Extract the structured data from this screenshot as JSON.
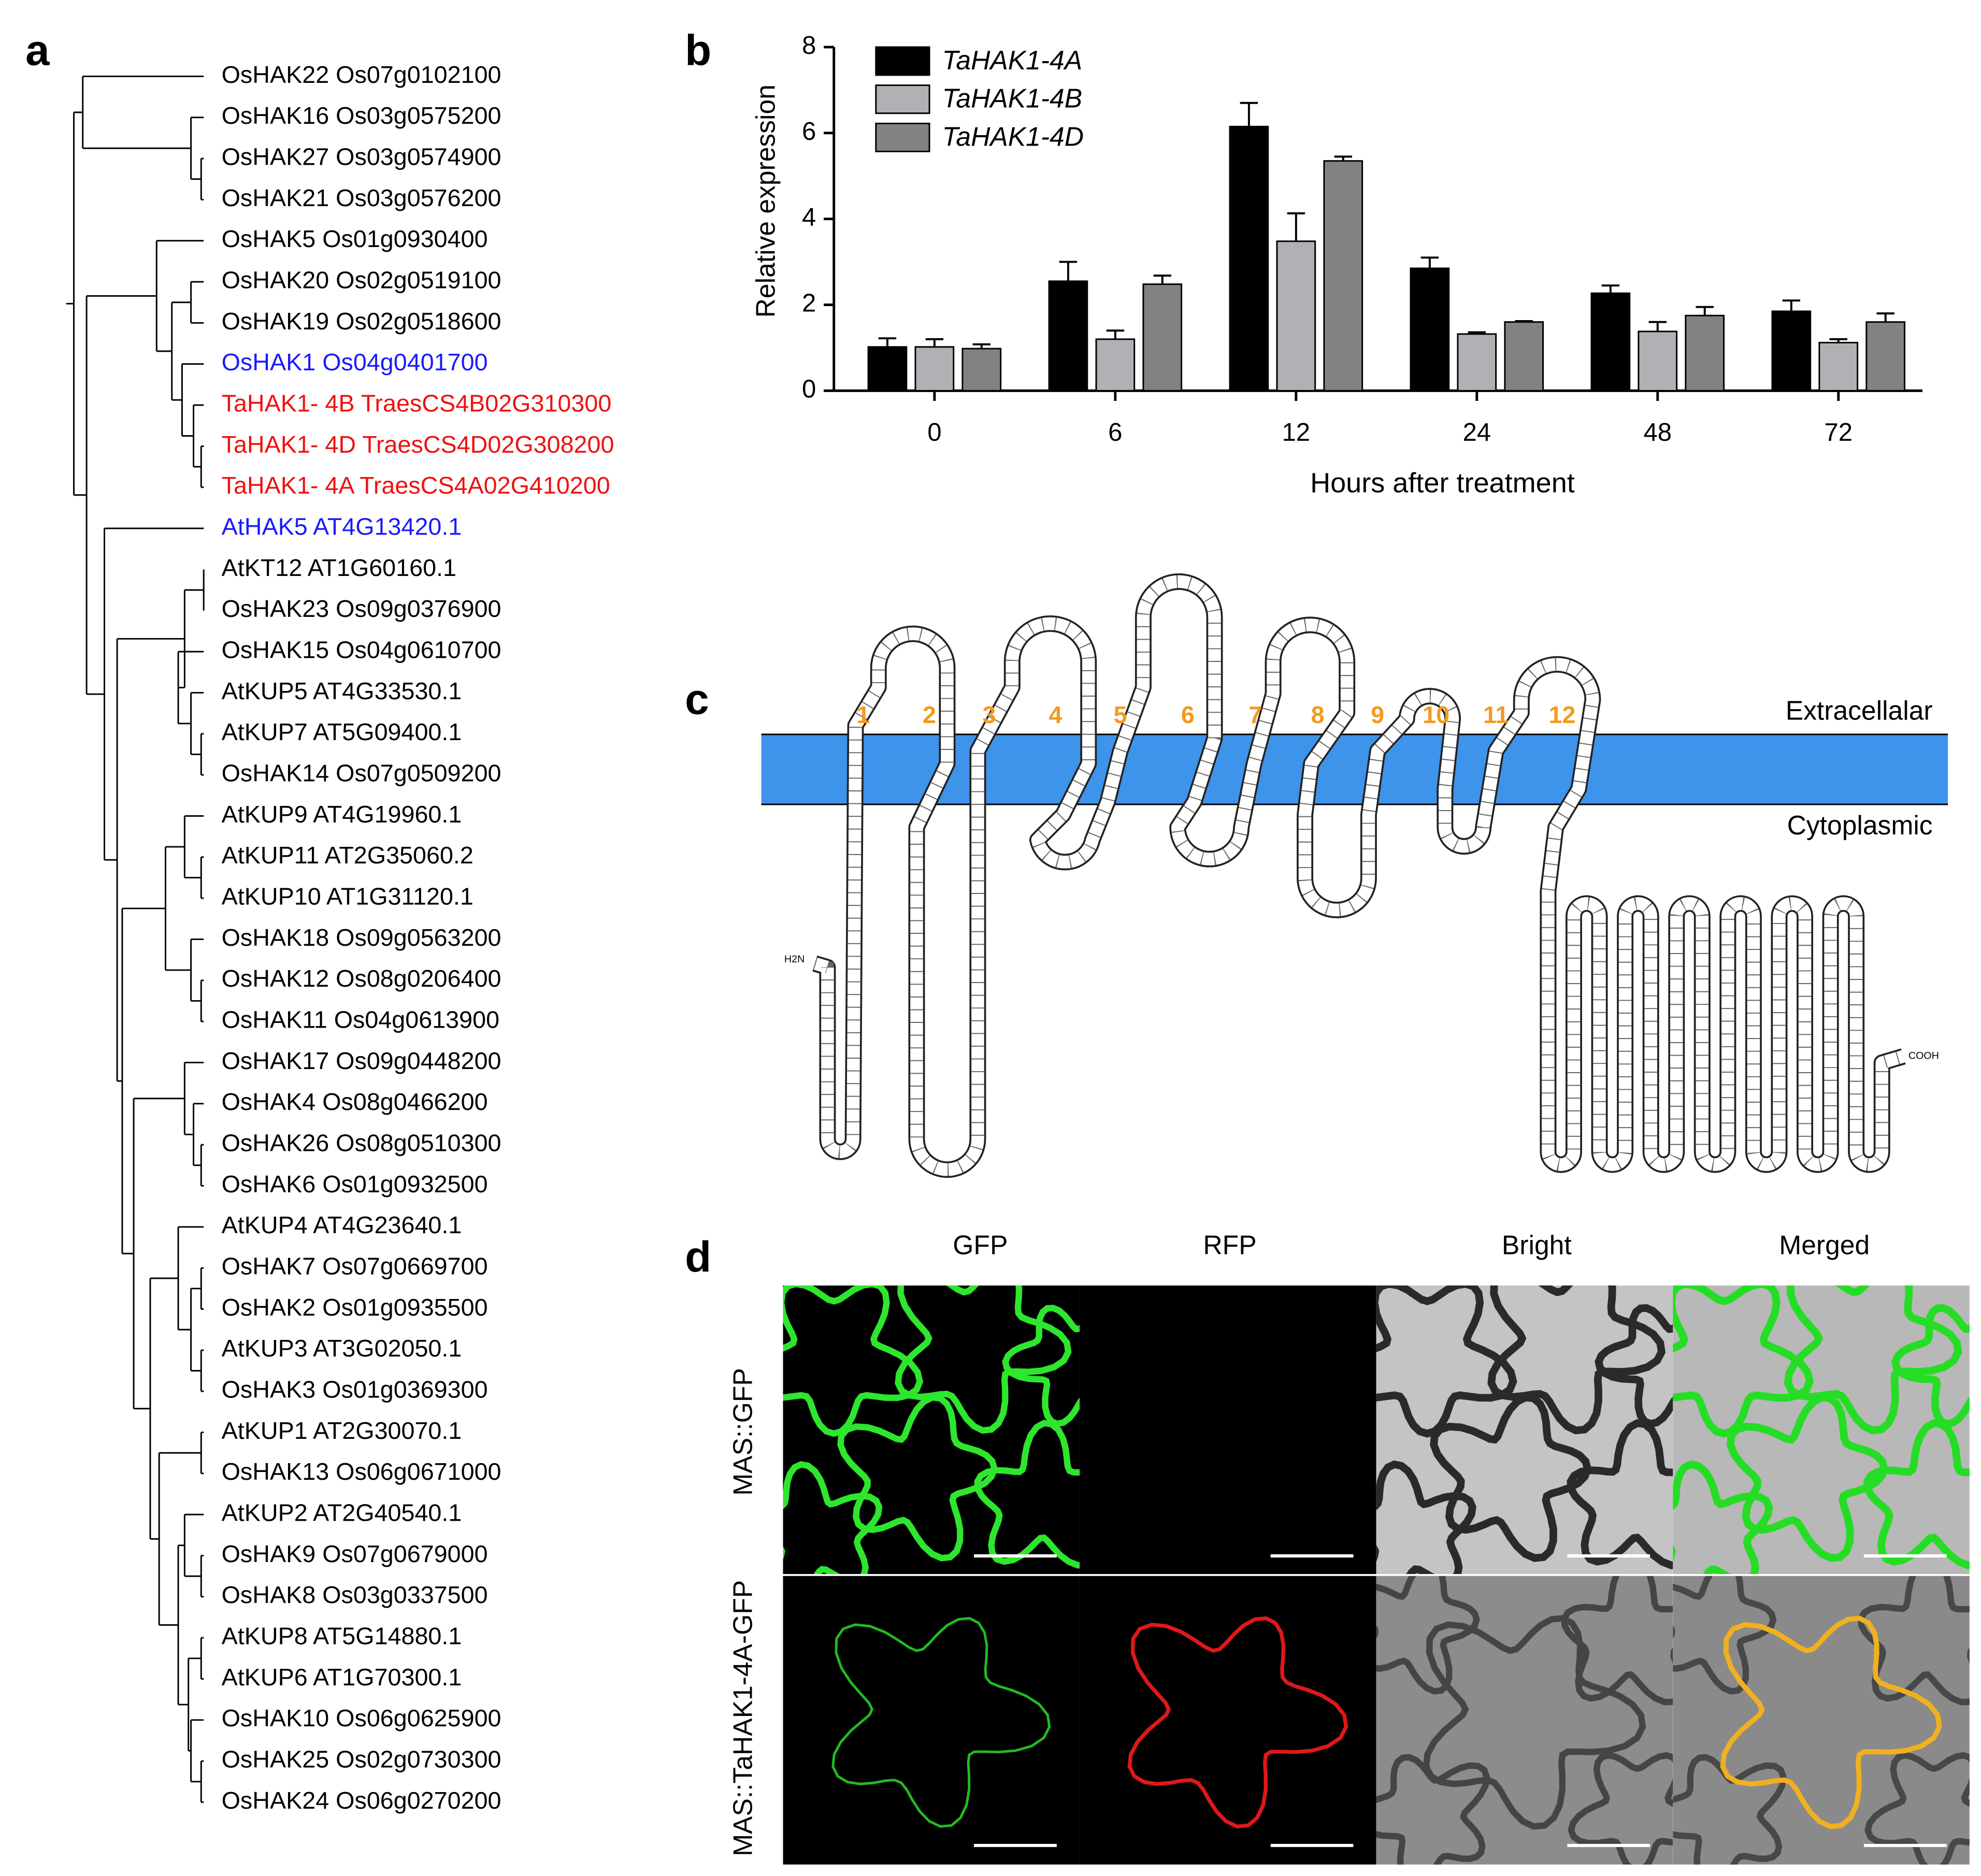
{
  "panel_labels": [
    "a",
    "b",
    "c",
    "d"
  ],
  "tree": {
    "leaves": [
      {
        "label": "OsHAK22 Os07g0102100",
        "color": "#000000"
      },
      {
        "label": "OsHAK16 Os03g0575200",
        "color": "#000000"
      },
      {
        "label": "OsHAK27 Os03g0574900",
        "color": "#000000"
      },
      {
        "label": "OsHAK21 Os03g0576200",
        "color": "#000000"
      },
      {
        "label": "OsHAK5 Os01g0930400",
        "color": "#000000"
      },
      {
        "label": "OsHAK20 Os02g0519100",
        "color": "#000000"
      },
      {
        "label": "OsHAK19 Os02g0518600",
        "color": "#000000"
      },
      {
        "label": "OsHAK1 Os04g0401700",
        "color": "#1a1aff"
      },
      {
        "label": "TaHAK1- 4B TraesCS4B02G310300",
        "color": "#ee1111"
      },
      {
        "label": "TaHAK1- 4D TraesCS4D02G308200",
        "color": "#ee1111"
      },
      {
        "label": "TaHAK1- 4A TraesCS4A02G410200",
        "color": "#ee1111"
      },
      {
        "label": "AtHAK5 AT4G13420.1",
        "color": "#1a1aff"
      },
      {
        "label": "AtKT12 AT1G60160.1",
        "color": "#000000"
      },
      {
        "label": "OsHAK23 Os09g0376900",
        "color": "#000000"
      },
      {
        "label": "OsHAK15 Os04g0610700",
        "color": "#000000"
      },
      {
        "label": "AtKUP5 AT4G33530.1",
        "color": "#000000"
      },
      {
        "label": "AtKUP7 AT5G09400.1",
        "color": "#000000"
      },
      {
        "label": "OsHAK14 Os07g0509200",
        "color": "#000000"
      },
      {
        "label": "AtKUP9 AT4G19960.1",
        "color": "#000000"
      },
      {
        "label": "AtKUP11 AT2G35060.2",
        "color": "#000000"
      },
      {
        "label": "AtKUP10 AT1G31120.1",
        "color": "#000000"
      },
      {
        "label": "OsHAK18 Os09g0563200",
        "color": "#000000"
      },
      {
        "label": "OsHAK12 Os08g0206400",
        "color": "#000000"
      },
      {
        "label": "OsHAK11 Os04g0613900",
        "color": "#000000"
      },
      {
        "label": "OsHAK17 Os09g0448200",
        "color": "#000000"
      },
      {
        "label": "OsHAK4 Os08g0466200",
        "color": "#000000"
      },
      {
        "label": "OsHAK26 Os08g0510300",
        "color": "#000000"
      },
      {
        "label": "OsHAK6 Os01g0932500",
        "color": "#000000"
      },
      {
        "label": "AtKUP4 AT4G23640.1",
        "color": "#000000"
      },
      {
        "label": "OsHAK7 Os07g0669700",
        "color": "#000000"
      },
      {
        "label": "OsHAK2 Os01g0935500",
        "color": "#000000"
      },
      {
        "label": "AtKUP3 AT3G02050.1",
        "color": "#000000"
      },
      {
        "label": "OsHAK3 Os01g0369300",
        "color": "#000000"
      },
      {
        "label": "AtKUP1 AT2G30070.1",
        "color": "#000000"
      },
      {
        "label": "OsHAK13 Os06g0671000",
        "color": "#000000"
      },
      {
        "label": "AtKUP2 AT2G40540.1",
        "color": "#000000"
      },
      {
        "label": "OsHAK9 Os07g0679000",
        "color": "#000000"
      },
      {
        "label": "OsHAK8 Os03g0337500",
        "color": "#000000"
      },
      {
        "label": "AtKUP8 AT5G14880.1",
        "color": "#000000"
      },
      {
        "label": "AtKUP6 AT1G70300.1",
        "color": "#000000"
      },
      {
        "label": "OsHAK10 Os06g0625900",
        "color": "#000000"
      },
      {
        "label": "OsHAK25 Os02g0730300",
        "color": "#000000"
      },
      {
        "label": "OsHAK24 Os06g0270200",
        "color": "#000000"
      }
    ]
  },
  "chart_data": {
    "type": "bar",
    "x_label": "Hours after treatment",
    "y_label": "Relative expression",
    "categories": [
      "0",
      "6",
      "12",
      "24",
      "48",
      "72"
    ],
    "series": [
      {
        "name": "TaHAK1-4A",
        "color": "#000000",
        "values": [
          1.02,
          2.55,
          6.15,
          2.85,
          2.27,
          1.85
        ],
        "errors": [
          0.2,
          0.45,
          0.55,
          0.25,
          0.18,
          0.25
        ]
      },
      {
        "name": "TaHAK1-4B",
        "color": "#b1b1b5",
        "values": [
          1.02,
          1.2,
          3.48,
          1.32,
          1.38,
          1.12
        ],
        "errors": [
          0.18,
          0.2,
          0.65,
          0.04,
          0.22,
          0.08
        ]
      },
      {
        "name": "TaHAK1-4D",
        "color": "#828282",
        "values": [
          0.98,
          2.48,
          5.35,
          1.6,
          1.75,
          1.6
        ],
        "errors": [
          0.1,
          0.2,
          0.1,
          0.02,
          0.2,
          0.2
        ]
      }
    ],
    "ylim": [
      0,
      8
    ],
    "yticks": [
      0,
      2,
      4,
      6,
      8
    ],
    "legend": "upper left"
  },
  "topology": {
    "helices": [
      "1",
      "2",
      "3",
      "4",
      "5",
      "6",
      "7",
      "8",
      "9",
      "10",
      "11",
      "12"
    ],
    "helix_color": "#f39a1e",
    "membrane_color": "#3e93ea",
    "extracellular": "Extracellalar",
    "cytoplasmic": "Cytoplasmic",
    "n_terminus": "H2N",
    "c_terminus": "COOH"
  },
  "micrographs": {
    "columns": [
      "GFP",
      "RFP",
      "Bright",
      "Merged"
    ],
    "rows": [
      "MAS::GFP",
      "MAS::TaHAK1-4A-GFP"
    ]
  }
}
